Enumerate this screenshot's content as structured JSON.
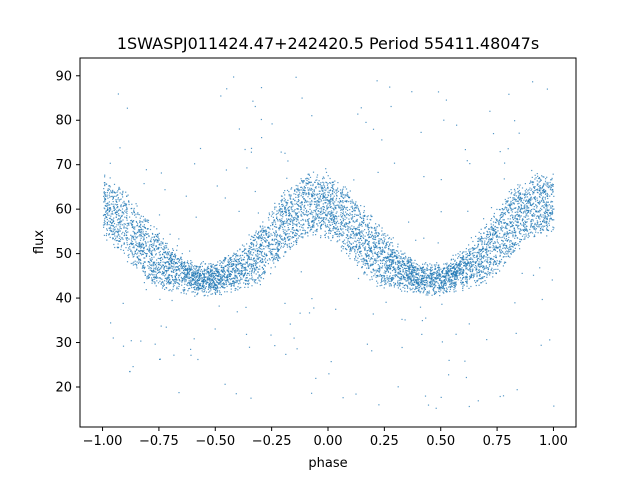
{
  "chart_data": {
    "type": "scatter",
    "title": "1SWASPJ011424.47+242420.5 Period 55411.48047s",
    "xlabel": "phase",
    "ylabel": "flux",
    "xlim": [
      -1.1,
      1.1
    ],
    "ylim": [
      11,
      94
    ],
    "xticks": [
      -1.0,
      -0.75,
      -0.5,
      -0.25,
      0.0,
      0.25,
      0.5,
      0.75,
      1.0
    ],
    "xtick_labels": [
      "−1.00",
      "−0.75",
      "−0.50",
      "−0.25",
      "0.00",
      "0.25",
      "0.50",
      "0.75",
      "1.00"
    ],
    "yticks": [
      20,
      30,
      40,
      50,
      60,
      70,
      80,
      90
    ],
    "ytick_labels": [
      "20",
      "30",
      "40",
      "50",
      "60",
      "70",
      "80",
      "90"
    ],
    "grid": false,
    "series_color": "#1f77b4",
    "phase_range": [
      -1.0,
      1.0
    ],
    "envelope": {
      "phase": [
        0.0,
        0.1,
        0.2,
        0.3,
        0.4,
        0.5,
        0.6,
        0.7,
        0.8,
        0.9,
        1.0
      ],
      "upper": [
        67,
        63,
        57,
        51,
        47,
        47,
        50,
        56,
        63,
        67,
        67
      ],
      "lower": [
        55,
        50,
        44,
        43,
        42,
        42,
        43,
        44,
        50,
        55,
        55
      ]
    },
    "outlier_range": [
      15,
      90
    ]
  }
}
